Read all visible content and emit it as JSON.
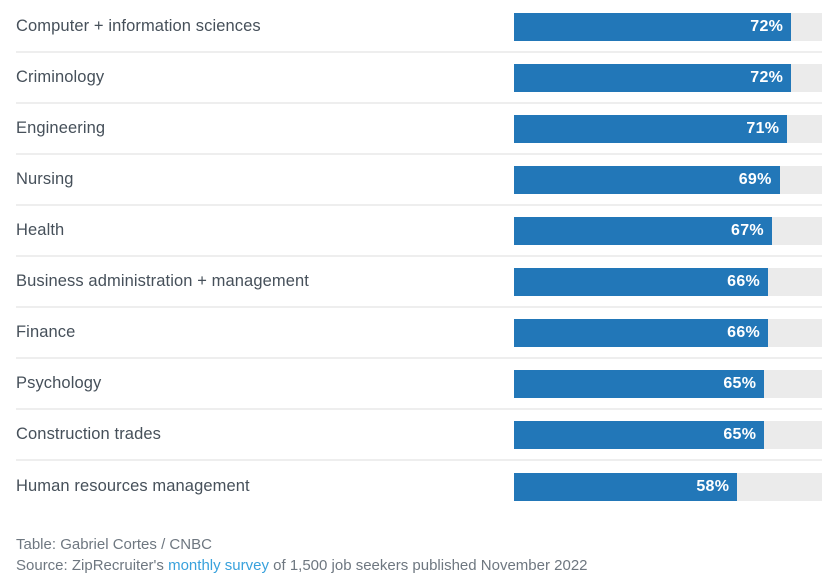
{
  "chart_data": {
    "type": "bar",
    "orientation": "horizontal",
    "title": "",
    "xlabel": "",
    "ylabel": "",
    "xlim": [
      0,
      80
    ],
    "value_suffix": "%",
    "grid": false,
    "legend": false,
    "bar_color": "#2277b8",
    "track_color": "#ebebeb",
    "categories": [
      "Computer + information sciences",
      "Criminology",
      "Engineering",
      "Nursing",
      "Health",
      "Business administration + management",
      "Finance",
      "Psychology",
      "Construction trades",
      "Human resources management"
    ],
    "values": [
      72,
      72,
      71,
      69,
      67,
      66,
      66,
      65,
      65,
      58
    ]
  },
  "rows": [
    {
      "label": "Computer + information sciences",
      "value": 72,
      "display": "72%"
    },
    {
      "label": "Criminology",
      "value": 72,
      "display": "72%"
    },
    {
      "label": "Engineering",
      "value": 71,
      "display": "71%"
    },
    {
      "label": "Nursing",
      "value": 69,
      "display": "69%"
    },
    {
      "label": "Health",
      "value": 67,
      "display": "67%"
    },
    {
      "label": "Business administration + management",
      "value": 66,
      "display": "66%"
    },
    {
      "label": "Finance",
      "value": 66,
      "display": "66%"
    },
    {
      "label": "Psychology",
      "value": 65,
      "display": "65%"
    },
    {
      "label": "Construction trades",
      "value": 65,
      "display": "65%"
    },
    {
      "label": "Human resources management",
      "value": 58,
      "display": "58%"
    }
  ],
  "footer": {
    "table_credit": "Table: Gabriel Cortes / CNBC",
    "source_prefix": "Source: ZipRecruiter's ",
    "source_link": "monthly survey",
    "source_suffix": " of 1,500 job seekers published November 2022"
  },
  "colors": {
    "bar": "#2277b8",
    "track": "#ebebeb",
    "label_text": "#46505a",
    "separator": "#eeeeee",
    "footer_text": "#6e7780",
    "link": "#38a1dc"
  }
}
